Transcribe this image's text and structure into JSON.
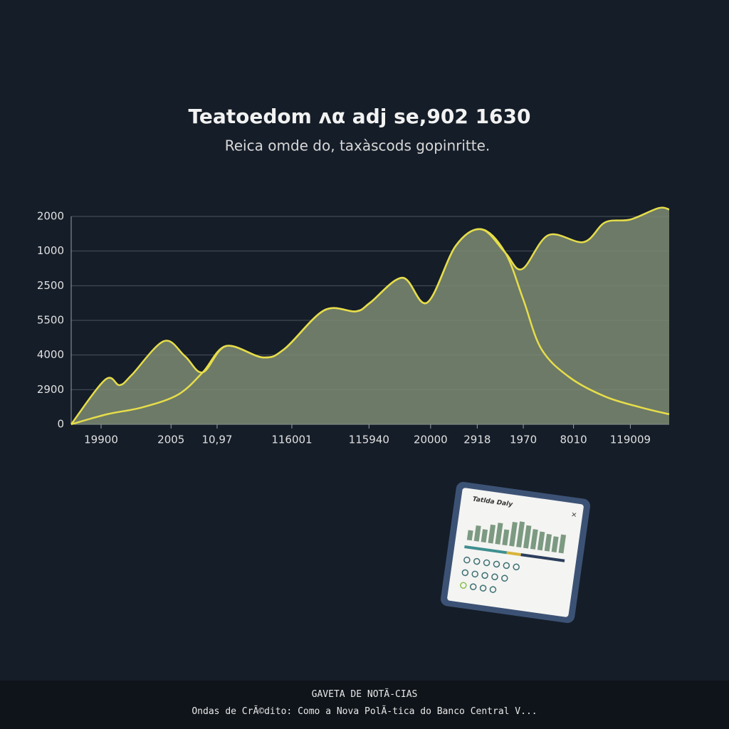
{
  "chart_data": {
    "type": "area",
    "title": "Teatoedom ʌα adj se,902 1630",
    "subtitle": "Reica omde do, taxàscods gopinritte.",
    "xlim": [
      0,
      100
    ],
    "xticks": [
      {
        "value": 5,
        "label": "19900"
      },
      {
        "value": 16.7,
        "label": "2005"
      },
      {
        "value": 24.4,
        "label": "10,97"
      },
      {
        "value": 36.9,
        "label": "116001"
      },
      {
        "value": 49.8,
        "label": "115940"
      },
      {
        "value": 60.1,
        "label": "20000"
      },
      {
        "value": 67.9,
        "label": "2918"
      },
      {
        "value": 75.6,
        "label": "1970"
      },
      {
        "value": 84,
        "label": "8010"
      },
      {
        "value": 93.5,
        "label": "119009"
      }
    ],
    "ylim": [
      0,
      6
    ],
    "yticks": [
      {
        "value": 0,
        "label": "0"
      },
      {
        "value": 1,
        "label": "2900"
      },
      {
        "value": 2,
        "label": "4000"
      },
      {
        "value": 3,
        "label": "5500"
      },
      {
        "value": 4,
        "label": "2500"
      },
      {
        "value": 5,
        "label": "1000"
      },
      {
        "value": 6,
        "label": "2000"
      }
    ],
    "grid": true,
    "series": [
      {
        "color": "#e6dd4a",
        "fill": "#7d8b72",
        "x": [
          0,
          5.7,
          8.1,
          10.1,
          15.5,
          19,
          22,
          25.9,
          32.1,
          35.7,
          42.3,
          47.6,
          50,
          55.4,
          59.5,
          64.3,
          68.6,
          72.6,
          75.4,
          79.8,
          85.7,
          89.3,
          93.5,
          98.2,
          100
        ],
        "values": [
          0,
          1.29,
          1.13,
          1.42,
          2.4,
          1.97,
          1.5,
          2.26,
          1.93,
          2.18,
          3.29,
          3.26,
          3.51,
          4.23,
          3.51,
          5.15,
          5.63,
          4.95,
          4.48,
          5.46,
          5.26,
          5.83,
          5.91,
          6.24,
          6.2
        ]
      },
      {
        "color": "#e6dd4a",
        "x": [
          0,
          6,
          11.9,
          17.9,
          22,
          25.9,
          32.1,
          35.7,
          42.3,
          47.6,
          50,
          55.4,
          59.5,
          64.3,
          68.6,
          72.6,
          75.6,
          78.6,
          83.3,
          89.3,
          95.2,
          100
        ],
        "values": [
          0,
          0.29,
          0.49,
          0.86,
          1.5,
          2.26,
          1.93,
          2.18,
          3.29,
          3.26,
          3.51,
          4.23,
          3.51,
          5.15,
          5.63,
          4.95,
          3.6,
          2.18,
          1.36,
          0.8,
          0.49,
          0.29
        ]
      }
    ]
  },
  "tablet": {
    "title": "Tatlda Daly"
  },
  "ticker": {
    "heading": "GAVETA DE NOTÃ-CIAS",
    "headline": "Ondas de CrÃ©dito: Como a Nova PolÃ-tica do Banco Central V..."
  }
}
